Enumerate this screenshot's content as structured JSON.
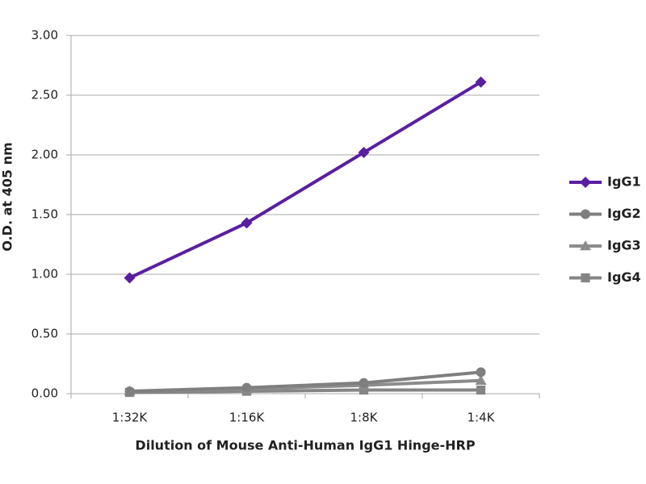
{
  "chart_data": {
    "type": "line",
    "x_label": "Dilution of Mouse Anti-Human IgG1 Hinge-HRP",
    "y_label": "O.D. at 405 nm",
    "categories": [
      "1:32K",
      "1:16K",
      "1:8K",
      "1:4K"
    ],
    "series": [
      {
        "name": "IgG1",
        "color": "#5a1fa0",
        "marker": "diamond",
        "values": [
          0.97,
          1.43,
          2.02,
          2.61
        ]
      },
      {
        "name": "IgG2",
        "color": "#7f7f7f",
        "marker": "circle",
        "values": [
          0.02,
          0.05,
          0.09,
          0.18
        ]
      },
      {
        "name": "IgG3",
        "color": "#8c8c8c",
        "marker": "triangle",
        "values": [
          0.02,
          0.04,
          0.07,
          0.11
        ]
      },
      {
        "name": "IgG4",
        "color": "#858585",
        "marker": "square",
        "values": [
          0.01,
          0.02,
          0.03,
          0.03
        ]
      }
    ],
    "ylim": [
      0,
      3
    ],
    "yticks": [
      {
        "value": 0,
        "label": "0.00"
      },
      {
        "value": 0.5,
        "label": "0.50"
      },
      {
        "value": 1,
        "label": "1.00"
      },
      {
        "value": 1.5,
        "label": "1.50"
      },
      {
        "value": 2,
        "label": "2.00"
      },
      {
        "value": 2.5,
        "label": "2.50"
      },
      {
        "value": 3,
        "label": "3.00"
      }
    ],
    "grid": true,
    "legend": "right"
  }
}
